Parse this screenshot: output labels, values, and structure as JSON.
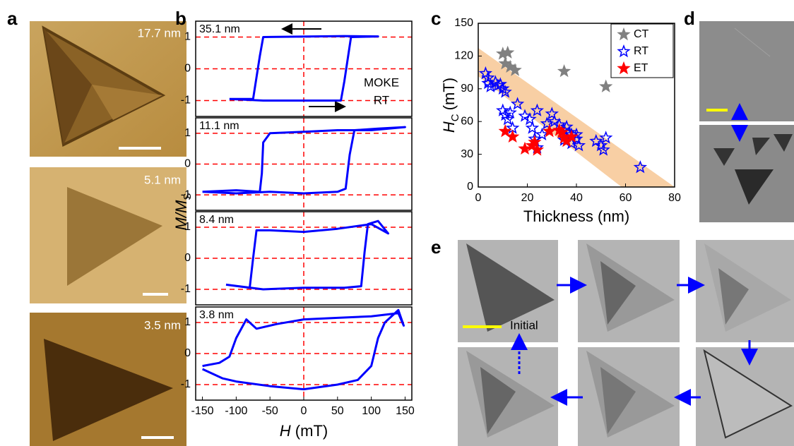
{
  "panels": {
    "a": {
      "label": "a",
      "images": [
        "17.7 nm",
        "5.1 nm",
        "3.5 nm"
      ]
    },
    "b": {
      "label": "b",
      "y_label": "M/M",
      "y_label_sub": "S",
      "x_label_var": "H",
      "x_label_unit": "(mT)"
    },
    "c": {
      "label": "c"
    },
    "d": {
      "label": "d"
    },
    "e": {
      "label": "e",
      "initial": "Initial"
    }
  },
  "chart_data": [
    {
      "type": "line",
      "annotation": "35.1 nm",
      "notes": [
        "MOKE",
        "RT"
      ],
      "xlim": [
        -160,
        160
      ],
      "ylim": [
        -1.5,
        1.5
      ],
      "yticks": [
        -1,
        0,
        1
      ],
      "grid": true,
      "grid_color": "#ff0000",
      "zero_line_x": 0,
      "series": [
        {
          "color": "#0000ff",
          "x": [
            -110,
            -60,
            55,
            60,
            70,
            110,
            60,
            -60,
            -65,
            -75,
            -110
          ],
          "values": [
            -0.95,
            -1.0,
            -1.0,
            -0.4,
            1.0,
            1.02,
            1.03,
            1.0,
            0.4,
            -0.95,
            -0.95
          ]
        }
      ]
    },
    {
      "type": "line",
      "annotation": "11.1 nm",
      "xlim": [
        -160,
        160
      ],
      "ylim": [
        -1.5,
        1.5
      ],
      "yticks": [
        -1,
        0,
        1
      ],
      "grid": true,
      "grid_color": "#ff0000",
      "zero_line_x": 0,
      "series": [
        {
          "color": "#0000ff",
          "x": [
            -150,
            -100,
            -50,
            0,
            50,
            62,
            68,
            75,
            110,
            150,
            100,
            50,
            0,
            -50,
            -60,
            -62,
            -65,
            -100,
            -150
          ],
          "values": [
            -0.9,
            -0.95,
            -0.9,
            -0.95,
            -0.9,
            -0.8,
            0.3,
            1.1,
            1.15,
            1.2,
            1.1,
            1.1,
            1.05,
            1.0,
            0.7,
            -0.3,
            -0.9,
            -0.85,
            -0.9
          ]
        }
      ]
    },
    {
      "type": "line",
      "annotation": "8.4 nm",
      "xlim": [
        -160,
        160
      ],
      "ylim": [
        -1.5,
        1.5
      ],
      "yticks": [
        -1,
        0,
        1
      ],
      "grid": true,
      "grid_color": "#ff0000",
      "zero_line_x": 0,
      "series": [
        {
          "color": "#0000ff",
          "x": [
            -115,
            -60,
            0,
            60,
            85,
            90,
            95,
            110,
            125,
            100,
            50,
            0,
            -50,
            -70,
            -75,
            -80,
            -115
          ],
          "values": [
            -0.85,
            -1.0,
            -0.95,
            -0.95,
            -0.9,
            0.2,
            1.1,
            1.2,
            0.8,
            1.1,
            0.95,
            0.85,
            0.9,
            0.9,
            0.0,
            -0.95,
            -0.85
          ]
        }
      ]
    },
    {
      "type": "line",
      "annotation": "3.8 nm",
      "xlim": [
        -160,
        160
      ],
      "ylim": [
        -1.5,
        1.5
      ],
      "yticks": [
        -1,
        0,
        1
      ],
      "grid": true,
      "grid_color": "#ff0000",
      "zero_line_x": 0,
      "xticks": [
        -150,
        -100,
        -50,
        0,
        50,
        100,
        150
      ],
      "series": [
        {
          "color": "#0000ff",
          "x": [
            -150,
            -120,
            -100,
            -50,
            0,
            50,
            80,
            100,
            110,
            120,
            140,
            148,
            140,
            100,
            50,
            0,
            -40,
            -70,
            -85,
            -100,
            -110,
            -125,
            -150
          ],
          "values": [
            -0.5,
            -0.8,
            -0.9,
            -1.05,
            -1.15,
            -1.0,
            -0.85,
            -0.4,
            0.5,
            1.0,
            1.4,
            0.9,
            1.3,
            1.2,
            1.15,
            1.1,
            0.95,
            0.8,
            1.1,
            0.5,
            -0.1,
            -0.3,
            -0.4
          ]
        }
      ]
    },
    {
      "type": "scatter",
      "x_label": "Thickness (nm)",
      "y_label": "H",
      "y_label_sub": "C",
      "y_label_unit": "(mT)",
      "xlim": [
        0,
        80
      ],
      "xticks": [
        0,
        20,
        40,
        60,
        80
      ],
      "ylim": [
        0,
        150
      ],
      "yticks": [
        0,
        30,
        60,
        90,
        120,
        150
      ],
      "legend": "top-right",
      "series": [
        {
          "name": "CT",
          "color": "#808080",
          "marker": "star",
          "filled": true,
          "x": [
            10,
            12,
            11,
            13,
            15,
            35,
            52
          ],
          "values": [
            122,
            123,
            113,
            110,
            107,
            106,
            92
          ]
        },
        {
          "name": "RT",
          "color": "#0000ff",
          "marker": "star",
          "filled": false,
          "x": [
            3,
            4,
            4,
            5,
            7,
            8,
            9,
            10,
            11,
            10,
            11,
            13,
            12,
            14,
            16,
            19,
            21,
            22,
            24,
            26,
            28,
            30,
            31,
            33,
            35,
            36,
            37,
            38,
            35,
            38,
            40,
            40,
            41,
            48,
            50,
            51,
            52,
            66,
            23,
            24
          ],
          "values": [
            104,
            100,
            95,
            92,
            96,
            93,
            94,
            90,
            87,
            70,
            66,
            68,
            62,
            54,
            76,
            65,
            62,
            54,
            70,
            48,
            58,
            67,
            60,
            57,
            52,
            55,
            50,
            48,
            43,
            40,
            44,
            48,
            38,
            42,
            38,
            34,
            45,
            18,
            44,
            36
          ]
        },
        {
          "name": "ET",
          "color": "#ff0000",
          "marker": "star",
          "filled": true,
          "x": [
            11,
            14,
            19,
            22,
            24,
            23,
            29,
            33,
            34,
            36,
            38,
            35
          ],
          "values": [
            51,
            46,
            35,
            38,
            34,
            41,
            51,
            52,
            50,
            42,
            46,
            45
          ]
        }
      ]
    }
  ]
}
